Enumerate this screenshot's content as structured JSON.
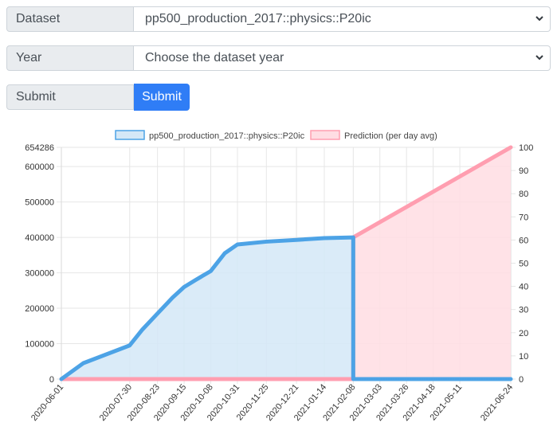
{
  "form": {
    "dataset_label": "Dataset",
    "dataset_value": "pp500_production_2017::physics::P20ic",
    "year_label": "Year",
    "year_value": "Choose the dataset year",
    "submit_label": "Submit",
    "submit_button": "Submit"
  },
  "chart_data": {
    "type": "line",
    "legend": [
      {
        "name": "pp500_production_2017::physics::P20ic",
        "color": "#4da3e6",
        "fill": "#d4e8f7"
      },
      {
        "name": "Prediction (per day avg)",
        "color": "#ff9eb0",
        "fill": "#ffdde3"
      }
    ],
    "x_tick_labels": [
      "2020-06-01",
      "2020-07-30",
      "2020-08-23",
      "2020-09-15",
      "2020-10-08",
      "2020-10-31",
      "2020-11-25",
      "2020-12-21",
      "2021-01-14",
      "2021-02-08",
      "2021-03-03",
      "2021-03-26",
      "2021-04-18",
      "2021-05-11",
      "2021-06-24"
    ],
    "y_left": {
      "ticks": [
        "0",
        "100000",
        "200000",
        "300000",
        "400000",
        "500000",
        "600000"
      ],
      "max_label": "654286",
      "ylim": [
        0,
        654286
      ]
    },
    "y_right": {
      "ticks": [
        "0",
        "10",
        "20",
        "30",
        "40",
        "50",
        "60",
        "70",
        "80",
        "90",
        "100"
      ],
      "ylim": [
        0,
        100
      ]
    },
    "series": [
      {
        "name": "pp500_production_2017::physics::P20ic",
        "axis": "left",
        "x": [
          "2020-06-01",
          "2020-06-20",
          "2020-07-30",
          "2020-08-10",
          "2020-08-23",
          "2020-09-05",
          "2020-09-15",
          "2020-09-25",
          "2020-10-08",
          "2020-10-20",
          "2020-10-31",
          "2020-11-25",
          "2020-12-21",
          "2021-01-14",
          "2021-02-08",
          "2021-02-08",
          "2021-06-24"
        ],
        "y": [
          0,
          45000,
          95000,
          140000,
          185000,
          230000,
          260000,
          280000,
          305000,
          355000,
          380000,
          388000,
          393000,
          398000,
          400000,
          0,
          0
        ]
      },
      {
        "name": "Prediction (per day avg)",
        "axis": "left",
        "x": [
          "2020-06-01",
          "2021-02-08",
          "2021-02-08",
          "2021-06-24"
        ],
        "y": [
          0,
          0,
          400000,
          654286
        ]
      }
    ],
    "grid": true,
    "legend_position": "top"
  }
}
